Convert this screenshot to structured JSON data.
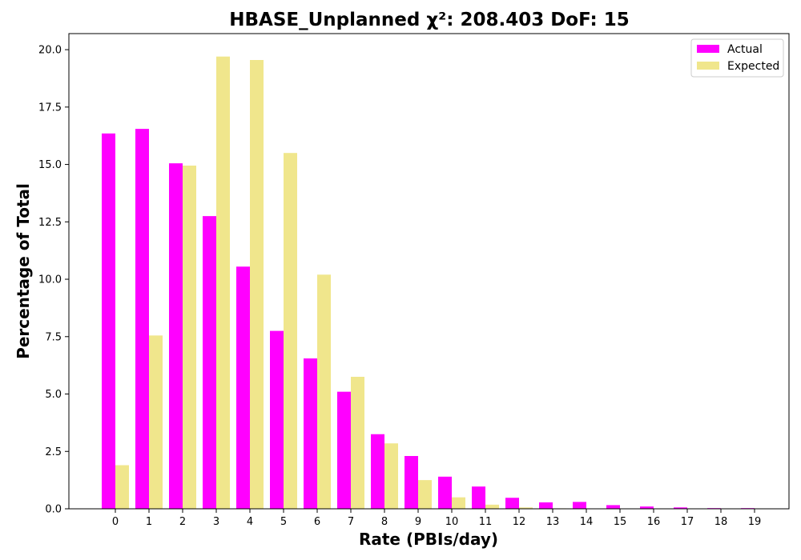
{
  "chart_data": {
    "type": "bar",
    "title": "HBASE_Unplanned χ²: 208.403 DoF: 15",
    "xlabel": "Rate (PBIs/day)",
    "ylabel": "Percentage of Total",
    "categories": [
      "0",
      "1",
      "2",
      "3",
      "4",
      "5",
      "6",
      "7",
      "8",
      "9",
      "10",
      "11",
      "12",
      "13",
      "14",
      "15",
      "16",
      "17",
      "18",
      "19"
    ],
    "ylim": [
      0,
      20.7
    ],
    "yticks": [
      "0.0",
      "2.5",
      "5.0",
      "7.5",
      "10.0",
      "12.5",
      "15.0",
      "17.5",
      "20.0"
    ],
    "grid": false,
    "legend_position": "top-right",
    "series": [
      {
        "name": "Actual",
        "color": "#ff00ff",
        "values": [
          16.35,
          16.55,
          15.05,
          12.75,
          10.55,
          7.75,
          6.55,
          5.1,
          3.25,
          2.3,
          1.4,
          0.97,
          0.48,
          0.28,
          0.3,
          0.16,
          0.1,
          0.06,
          0.03,
          0.03
        ]
      },
      {
        "name": "Expected",
        "color": "#f0e68c",
        "values": [
          1.9,
          7.55,
          14.95,
          19.7,
          19.55,
          15.5,
          10.2,
          5.75,
          2.85,
          1.25,
          0.5,
          0.18,
          0.06,
          0.02,
          0.01,
          0.0,
          0.0,
          0.0,
          0.0,
          0.0
        ]
      }
    ]
  }
}
